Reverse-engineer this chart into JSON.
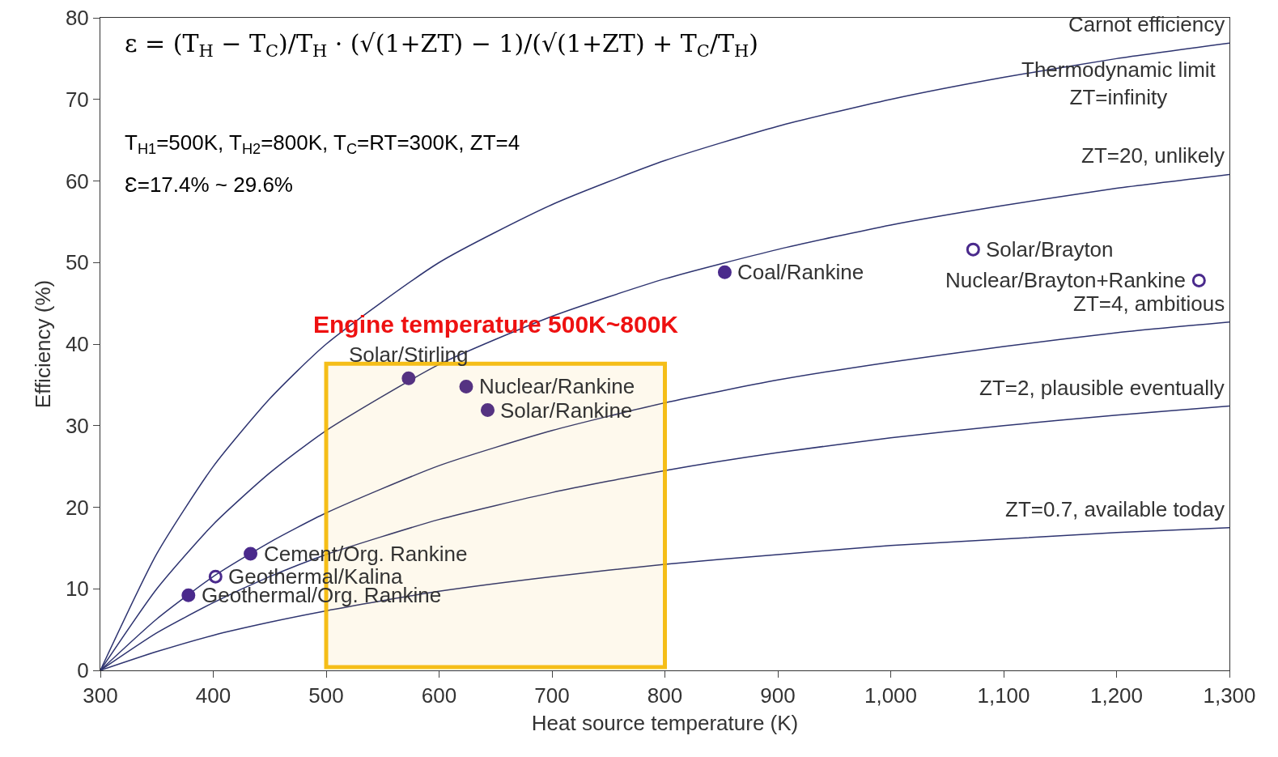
{
  "chart_data": {
    "type": "line",
    "xlabel": "Heat source temperature (K)",
    "ylabel": "Efficiency (%)",
    "x": [
      300,
      350,
      400,
      450,
      500,
      600,
      700,
      800,
      900,
      1000,
      1100,
      1200,
      1300
    ],
    "series": [
      {
        "name": "Carnot efficiency",
        "color": "#2e3470",
        "values": [
          0,
          14.3,
          25,
          33.3,
          40,
          50,
          57.1,
          62.5,
          66.7,
          70,
          72.7,
          75,
          76.9
        ]
      },
      {
        "name": "ZT=20, unlikely",
        "color": "#2e3470",
        "values": [
          0,
          10,
          17.9,
          24.2,
          29.4,
          37.5,
          43.4,
          48,
          51.6,
          54.6,
          57,
          59.1,
          60.8
        ]
      },
      {
        "name": "ZT=4, ambitious",
        "color": "#2e3470",
        "values": [
          0,
          6.3,
          11.5,
          15.7,
          19.3,
          25.1,
          29.4,
          32.8,
          35.6,
          37.8,
          39.7,
          41.4,
          42.7
        ]
      },
      {
        "name": "ZT=2, plausible eventually",
        "color": "#2e3470",
        "values": [
          0,
          4.6,
          8.3,
          11.5,
          14.2,
          18.5,
          21.8,
          24.5,
          26.7,
          28.5,
          30,
          31.3,
          32.4
        ]
      },
      {
        "name": "ZT=0.7, available today",
        "color": "#2e3470",
        "values": [
          0,
          2.3,
          4.3,
          5.9,
          7.3,
          9.7,
          11.5,
          13,
          14.2,
          15.3,
          16.1,
          16.9,
          17.5
        ]
      },
      {
        "type": "scatter",
        "marker": "circle",
        "color": "#4a2a8c",
        "x": [
          378,
          433,
          573,
          624,
          643,
          853
        ],
        "values": [
          9.2,
          14.3,
          35.8,
          34.8,
          31.9,
          48.8
        ]
      },
      {
        "type": "scatter",
        "marker": "circle-open",
        "color": "#4a2a8c",
        "x": [
          402,
          1073,
          1273
        ],
        "values": [
          11.5,
          51.6,
          47.8
        ]
      }
    ],
    "xlim": [
      300,
      1300
    ],
    "xticks": [
      300,
      400,
      500,
      600,
      700,
      800,
      900,
      {
        "value": 1000,
        "label": "1,000"
      },
      {
        "value": 1100,
        "label": "1,100"
      },
      {
        "value": 1200,
        "label": "1,200"
      },
      {
        "value": 1300,
        "label": "1,300"
      }
    ],
    "ylim": [
      0,
      80
    ],
    "yticks": [
      0,
      10,
      20,
      30,
      40,
      50,
      60,
      70,
      80
    ],
    "grid": false,
    "legend": false,
    "line_style": "solid",
    "bands": [
      {
        "axis": "x",
        "from": 500,
        "to": 800,
        "label": "Engine temperature 500K~800K",
        "color": "#f5b800"
      }
    ],
    "annotations": [
      "ε = (T$_{H}$ − T$_{C}$)/T$_{H}$ · (√(1+ZT) − 1)/(√(1+ZT) + T$_{C}$/T$_{H}$)",
      "T$_{H1}$=500K, T$_{H2}$=800K, T$_{C}$=RT=300K, ZT=4",
      "Ɛ=17.4% ~ 29.6%",
      {
        "text": "Thermodynamic limit\nZT=infinity",
        "x": 1300,
        "y": 76.9
      },
      {
        "text": "Geothermal/Org. Rankine",
        "x": 378,
        "y": 9.2
      },
      {
        "text": "Geothermal/Kalina",
        "x": 402,
        "y": 11.5
      },
      {
        "text": "Cement/Org. Rankine",
        "x": 433,
        "y": 14.3
      },
      {
        "text": "Solar/Stirling",
        "x": 573,
        "y": 35.8
      },
      {
        "text": "Nuclear/Rankine",
        "x": 624,
        "y": 34.8
      },
      {
        "text": "Solar/Rankine",
        "x": 643,
        "y": 31.9
      },
      {
        "text": "Coal/Rankine",
        "x": 853,
        "y": 48.8
      },
      {
        "text": "Solar/Brayton",
        "x": 1073,
        "y": 51.6
      },
      {
        "text": "Nuclear/Brayton+Rankine",
        "x": 1273,
        "y": 47.8
      }
    ]
  }
}
